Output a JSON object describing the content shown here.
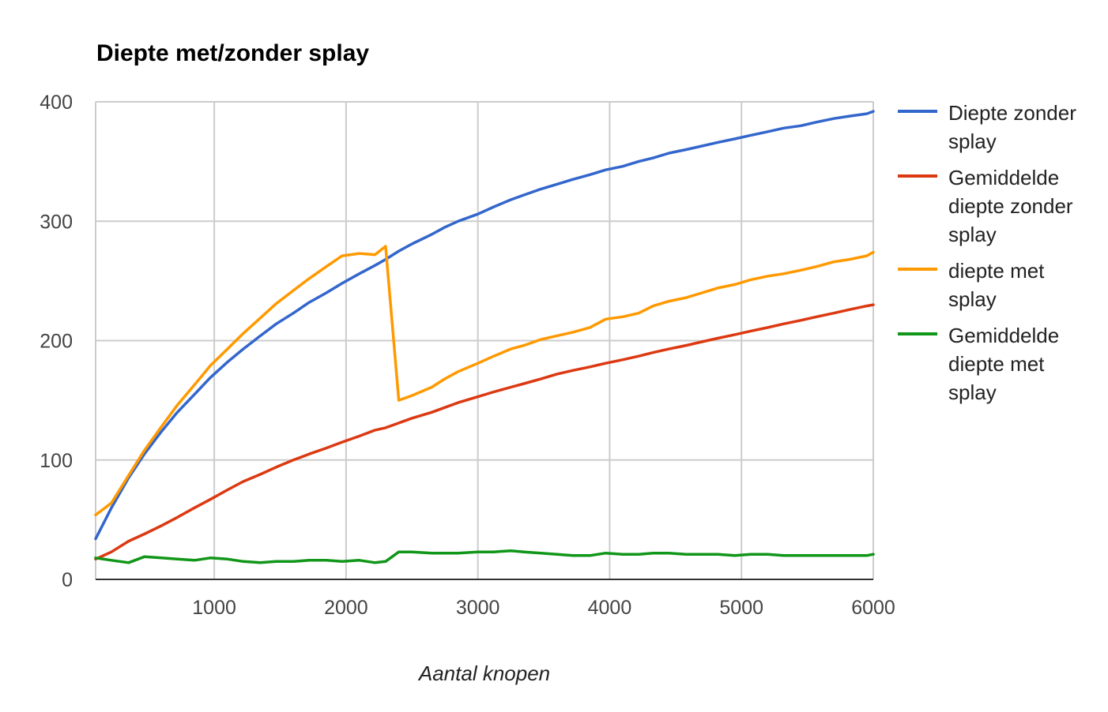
{
  "chart_data": {
    "type": "line",
    "title": "Diepte met/zonder splay",
    "xlabel": "Aantal knopen",
    "ylabel": "",
    "xlim": [
      100,
      6000
    ],
    "ylim": [
      0,
      400
    ],
    "x_ticks": [
      1000,
      2000,
      3000,
      4000,
      5000,
      6000
    ],
    "y_ticks": [
      0,
      100,
      200,
      300,
      400
    ],
    "grid": true,
    "legend_position": "right",
    "x": [
      100,
      220,
      350,
      470,
      600,
      720,
      850,
      970,
      1100,
      1220,
      1350,
      1470,
      1600,
      1720,
      1850,
      1970,
      2100,
      2220,
      2300,
      2400,
      2500,
      2650,
      2750,
      2850,
      3000,
      3120,
      3250,
      3350,
      3480,
      3600,
      3720,
      3850,
      3970,
      4100,
      4220,
      4330,
      4450,
      4580,
      4700,
      4820,
      4950,
      5070,
      5200,
      5320,
      5450,
      5570,
      5700,
      5820,
      5950,
      6000
    ],
    "series": [
      {
        "name": "Diepte zonder splay",
        "color": "#3366cc",
        "values": [
          34,
          60,
          85,
          105,
          124,
          140,
          155,
          169,
          182,
          193,
          204,
          214,
          223,
          232,
          240,
          248,
          256,
          263,
          268,
          275,
          281,
          289,
          295,
          300,
          306,
          312,
          318,
          322,
          327,
          331,
          335,
          339,
          343,
          346,
          350,
          353,
          357,
          360,
          363,
          366,
          369,
          372,
          375,
          378,
          380,
          383,
          386,
          388,
          390,
          392
        ]
      },
      {
        "name": "Gemiddelde diepte zonder splay",
        "color": "#dc3912",
        "values": [
          17,
          23,
          32,
          38,
          45,
          52,
          60,
          67,
          75,
          82,
          88,
          94,
          100,
          105,
          110,
          115,
          120,
          125,
          127,
          131,
          135,
          140,
          144,
          148,
          153,
          157,
          161,
          164,
          168,
          172,
          175,
          178,
          181,
          184,
          187,
          190,
          193,
          196,
          199,
          202,
          205,
          208,
          211,
          214,
          217,
          220,
          223,
          226,
          229,
          230
        ]
      },
      {
        "name": "diepte met splay",
        "color": "#ff9900",
        "values": [
          54,
          64,
          87,
          108,
          128,
          146,
          163,
          179,
          193,
          206,
          219,
          231,
          242,
          252,
          262,
          271,
          273,
          272,
          279,
          150,
          154,
          161,
          168,
          174,
          181,
          187,
          193,
          196,
          201,
          204,
          207,
          211,
          218,
          220,
          223,
          229,
          233,
          236,
          240,
          244,
          247,
          251,
          254,
          256,
          259,
          262,
          266,
          268,
          271,
          274
        ]
      },
      {
        "name": "Gemiddelde diepte met splay",
        "color": "#109618",
        "values": [
          18,
          16,
          14,
          19,
          18,
          17,
          16,
          18,
          17,
          15,
          14,
          15,
          15,
          16,
          16,
          15,
          16,
          14,
          15,
          23,
          23,
          22,
          22,
          22,
          23,
          23,
          24,
          23,
          22,
          21,
          20,
          20,
          22,
          21,
          21,
          22,
          22,
          21,
          21,
          21,
          20,
          21,
          21,
          20,
          20,
          20,
          20,
          20,
          20,
          21
        ]
      }
    ]
  },
  "legend_labels": [
    [
      "Diepte zonder",
      "splay"
    ],
    [
      "Gemiddelde",
      "diepte zonder",
      "splay"
    ],
    [
      "diepte met",
      "splay"
    ],
    [
      "Gemiddelde",
      "diepte met",
      "splay"
    ]
  ]
}
